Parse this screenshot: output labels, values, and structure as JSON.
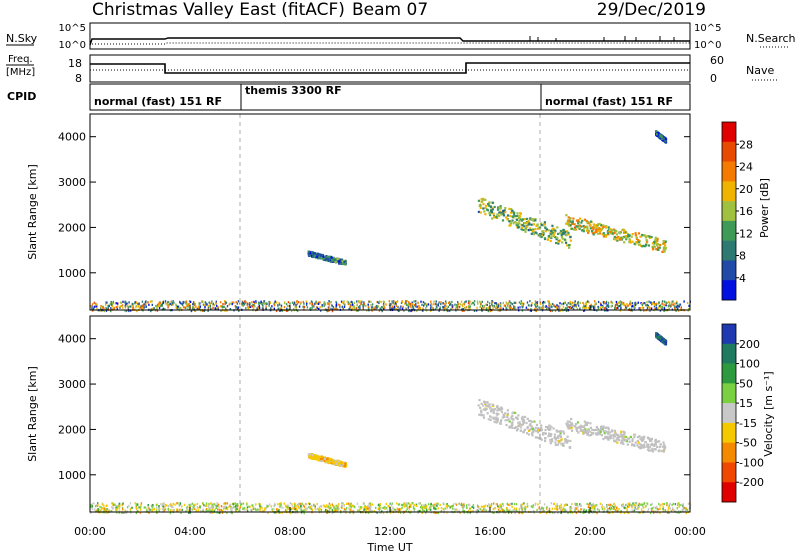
{
  "header": {
    "station": "Christmas Valley East (fitACF)",
    "beam": "Beam 07",
    "date": "29/Dec/2019"
  },
  "top_panels": {
    "nsky_label": "N.Sky",
    "nsearch_label": "N.Search",
    "noise_left_ticks": [
      "10^5",
      "10^0"
    ],
    "noise_right_ticks": [
      "10^5",
      "10^0"
    ],
    "freq_label": "Freq.",
    "freq_unit": "[MHz]",
    "freq_ticks": [
      "18",
      "8"
    ],
    "nave_label": "Nave",
    "nave_ticks": [
      "60",
      "0"
    ],
    "cpid_label": "CPID",
    "cpid_segments": [
      {
        "label": "normal (fast) 151 RF",
        "start_h": 0,
        "end_h": 6
      },
      {
        "label": "themis 3300 RF",
        "start_h": 6,
        "end_h": 18
      },
      {
        "label": "normal (fast) 151 RF",
        "start_h": 18,
        "end_h": 24
      }
    ]
  },
  "colors": {
    "power_scale": [
      "#0010e0",
      "#1f4aa8",
      "#2e7a73",
      "#3f9a58",
      "#a0c040",
      "#f0b400",
      "#f57a00",
      "#e84a00",
      "#e00000"
    ],
    "velocity_scale": [
      "#e00000",
      "#f04800",
      "#f58a00",
      "#f5c800",
      "#c8c8c8",
      "#7ad040",
      "#2e9a40",
      "#1f7a60",
      "#1f3ab0"
    ],
    "grey_scatter": "#c0c0c0"
  },
  "chart_data": [
    {
      "type": "heatmap",
      "name_key": "power",
      "xlabel": "",
      "ylabel": "Slant Range [km]",
      "xlim": [
        0,
        24
      ],
      "ylim": [
        180,
        4500
      ],
      "yticks": [
        1000,
        2000,
        3000,
        4000
      ],
      "colorbar": {
        "label": "Power [dB]",
        "range": [
          0,
          32
        ],
        "ticks": [
          "4",
          "8",
          "12",
          "16",
          "20",
          "24",
          "28"
        ]
      },
      "vertical_markers_h": [
        6,
        18
      ],
      "echo_regions": [
        {
          "t_start": 0.0,
          "t_end": 24.0,
          "r_start": 180,
          "r_end": 400,
          "value": 14,
          "desc": "near-range scatter"
        },
        {
          "t_start": 8.7,
          "t_end": 10.2,
          "r_start": 1200,
          "r_end": 1500,
          "value": 9
        },
        {
          "t_start": 15.5,
          "t_end": 19.2,
          "r_start": 1600,
          "r_end": 2700,
          "value": 14
        },
        {
          "t_start": 19.0,
          "t_end": 23.0,
          "r_start": 1500,
          "r_end": 2300,
          "value": 18
        },
        {
          "t_start": 22.6,
          "t_end": 23.0,
          "r_start": 3900,
          "r_end": 4150,
          "value": 6
        }
      ]
    },
    {
      "type": "heatmap",
      "name_key": "velocity",
      "xlabel": "Time UT",
      "ylabel": "Slant Range [km]",
      "xlim": [
        0,
        24
      ],
      "ylim": [
        180,
        4500
      ],
      "xticks": [
        "00:00",
        "04:00",
        "08:00",
        "12:00",
        "16:00",
        "20:00",
        "00:00"
      ],
      "yticks": [
        1000,
        2000,
        3000,
        4000
      ],
      "colorbar": {
        "label": "Velocity [m s⁻¹]",
        "ticks": [
          "-200",
          "-100",
          "-50",
          "-15",
          "15",
          "50",
          "100",
          "200"
        ]
      },
      "vertical_markers_h": [
        6,
        18
      ],
      "echo_regions": [
        {
          "t_start": 0.0,
          "t_end": 24.0,
          "r_start": 180,
          "r_end": 400,
          "value": 20,
          "desc": "near-range scatter"
        },
        {
          "t_start": 8.7,
          "t_end": 10.2,
          "r_start": 1200,
          "r_end": 1500,
          "value": -30
        },
        {
          "t_start": 15.5,
          "t_end": 19.2,
          "r_start": 1600,
          "r_end": 2700,
          "value": 0
        },
        {
          "t_start": 19.0,
          "t_end": 23.0,
          "r_start": 1500,
          "r_end": 2300,
          "value": 0
        },
        {
          "t_start": 22.6,
          "t_end": 23.0,
          "r_start": 3900,
          "r_end": 4150,
          "value": 200
        }
      ]
    }
  ]
}
